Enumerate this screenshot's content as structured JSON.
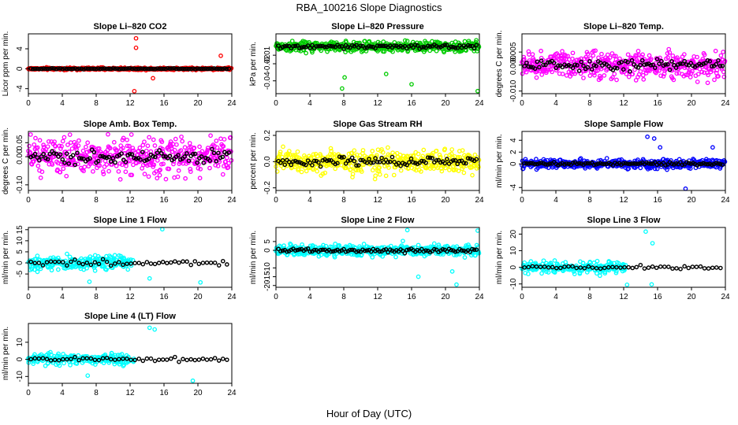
{
  "figure": {
    "title": "RBA_100216  Slope Diagnostics",
    "xlabel": "Hour of Day (UTC)"
  },
  "colors": {
    "red": "#ff0000",
    "green": "#00cc00",
    "magenta": "#ff00ff",
    "yellow": "#ffff00",
    "blue": "#0000ff",
    "cyan": "#00ffff",
    "black": "#000000"
  },
  "chart_data": [
    {
      "type": "scatter",
      "title": "Slope Li–820 CO2",
      "ylabel": "Licor ppm per min.",
      "xlim": [
        0,
        24
      ],
      "ylim": [
        -5,
        7
      ],
      "xticks": [
        "0",
        "4",
        "8",
        "12",
        "16",
        "20",
        "24"
      ],
      "yticks": [
        {
          "v": -4,
          "label": "-4"
        },
        {
          "v": 0,
          "label": "0"
        },
        {
          "v": 4,
          "label": "4"
        }
      ],
      "color": "red",
      "spread": 0.18,
      "density": "dense",
      "highlights": [
        {
          "x": 12.7,
          "y": 6.1
        },
        {
          "x": 12.7,
          "y": 4.2
        },
        {
          "x": 12.5,
          "y": -4.5
        },
        {
          "x": 14.7,
          "y": -1.9
        },
        {
          "x": 22.7,
          "y": 2.6
        }
      ]
    },
    {
      "type": "scatter",
      "title": "Slope Li–820 Pressure",
      "ylabel": "kPa per min.",
      "xlim": [
        0,
        24
      ],
      "ylim": [
        -0.055,
        0.015
      ],
      "xticks": [
        "0",
        "4",
        "8",
        "12",
        "16",
        "20",
        "24"
      ],
      "yticks": [
        {
          "v": -0.04,
          "label": "-0.04"
        },
        {
          "v": -0.02,
          "label": "-0.02"
        },
        {
          "v": -0.01,
          "label": "-0.01"
        }
      ],
      "color": "green",
      "spread": 0.005,
      "density": "dense",
      "highlights": [
        {
          "x": 7.8,
          "y": -0.049
        },
        {
          "x": 16.0,
          "y": -0.044
        },
        {
          "x": 23.8,
          "y": -0.052
        },
        {
          "x": 13.0,
          "y": -0.032
        },
        {
          "x": 8.1,
          "y": -0.036
        }
      ]
    },
    {
      "type": "scatter",
      "title": "Slope Li–820 Temp.",
      "ylabel": "degrees C per min.",
      "xlim": [
        0,
        24
      ],
      "ylim": [
        -0.011,
        0.012
      ],
      "xticks": [
        "0",
        "4",
        "8",
        "12",
        "16",
        "20",
        "24"
      ],
      "yticks": [
        {
          "v": -0.01,
          "label": "-0.010"
        },
        {
          "v": 0,
          "label": "0.000"
        },
        {
          "v": 0.005,
          "label": "0.005"
        }
      ],
      "color": "magenta",
      "spread": 0.004,
      "density": "dense",
      "highlights": []
    },
    {
      "type": "scatter",
      "title": "Slope Amb. Box Temp.",
      "ylabel": "degrees C per min.",
      "xlim": [
        0,
        24
      ],
      "ylim": [
        -0.12,
        0.09
      ],
      "xticks": [
        "0",
        "4",
        "8",
        "12",
        "16",
        "20",
        "24"
      ],
      "yticks": [
        {
          "v": -0.1,
          "label": "-0.10"
        },
        {
          "v": 0,
          "label": "0.00"
        },
        {
          "v": 0.05,
          "label": "0.05"
        }
      ],
      "color": "magenta",
      "spread": 0.05,
      "density": "dense",
      "highlights": []
    },
    {
      "type": "scatter",
      "title": "Slope Gas Stream RH",
      "ylabel": "percent per min.",
      "xlim": [
        0,
        24
      ],
      "ylim": [
        -0.22,
        0.23
      ],
      "xticks": [
        "0",
        "4",
        "8",
        "12",
        "16",
        "20",
        "24"
      ],
      "yticks": [
        {
          "v": -0.2,
          "label": "-0.2"
        },
        {
          "v": 0,
          "label": "0.0"
        },
        {
          "v": 0.2,
          "label": "0.2"
        }
      ],
      "color": "yellow",
      "spread": 0.07,
      "density": "dense",
      "highlights": []
    },
    {
      "type": "scatter",
      "title": "Slope Sample Flow",
      "ylabel": "ml/min per min.",
      "xlim": [
        0,
        24
      ],
      "ylim": [
        -4.5,
        5.5
      ],
      "xticks": [
        "0",
        "4",
        "8",
        "12",
        "16",
        "20",
        "24"
      ],
      "yticks": [
        {
          "v": -4,
          "label": "-4"
        },
        {
          "v": 0,
          "label": "0"
        },
        {
          "v": 2,
          "label": "2"
        },
        {
          "v": 4,
          "label": "4"
        }
      ],
      "color": "blue",
      "spread": 0.6,
      "density": "dense",
      "highlights": [
        {
          "x": 14.8,
          "y": 4.6
        },
        {
          "x": 15.6,
          "y": 4.3
        },
        {
          "x": 19.3,
          "y": -4.2
        },
        {
          "x": 22.5,
          "y": 2.8
        },
        {
          "x": 16.3,
          "y": 2.8
        }
      ]
    },
    {
      "type": "scatter",
      "title": "Slope Line 1 Flow",
      "ylabel": "ml/min per min.",
      "xlim": [
        0,
        24
      ],
      "ylim": [
        -11,
        16
      ],
      "xticks": [
        "0",
        "4",
        "8",
        "12",
        "16",
        "20",
        "24"
      ],
      "yticks": [
        {
          "v": -5,
          "label": "-5"
        },
        {
          "v": 0,
          "label": "0"
        },
        {
          "v": 5,
          "label": "5"
        },
        {
          "v": 10,
          "label": "10"
        },
        {
          "v": 15,
          "label": "15"
        }
      ],
      "color": "cyan",
      "spread": 2.2,
      "density": "sparse",
      "highlights": [
        {
          "x": 15.8,
          "y": 15.2
        },
        {
          "x": 7.2,
          "y": -8.5
        },
        {
          "x": 20.3,
          "y": -8.8
        },
        {
          "x": 14.3,
          "y": -7
        }
      ]
    },
    {
      "type": "scatter",
      "title": "Slope Line 2 Flow",
      "ylabel": "ml/min per min.",
      "xlim": [
        0,
        24
      ],
      "ylim": [
        -21,
        13
      ],
      "xticks": [
        "0",
        "4",
        "8",
        "12",
        "16",
        "20",
        "24"
      ],
      "yticks": [
        {
          "v": -20,
          "label": "-20"
        },
        {
          "v": -15,
          "label": "-15"
        },
        {
          "v": -10,
          "label": "-10"
        },
        {
          "v": 0,
          "label": "0"
        },
        {
          "v": 5,
          "label": "5"
        }
      ],
      "color": "cyan",
      "spread": 2.5,
      "density": "dense",
      "highlights": [
        {
          "x": 21.3,
          "y": -19.5
        },
        {
          "x": 15.5,
          "y": 11.5
        },
        {
          "x": 23.8,
          "y": 11.2
        },
        {
          "x": 16.8,
          "y": -15
        },
        {
          "x": 20.8,
          "y": -12
        }
      ]
    },
    {
      "type": "scatter",
      "title": "Slope Line 3 Flow",
      "ylabel": "ml/min per min.",
      "xlim": [
        0,
        24
      ],
      "ylim": [
        -12,
        24
      ],
      "xticks": [
        "0",
        "4",
        "8",
        "12",
        "16",
        "20",
        "24"
      ],
      "yticks": [
        {
          "v": -10,
          "label": "-10"
        },
        {
          "v": 0,
          "label": "0"
        },
        {
          "v": 10,
          "label": "10"
        },
        {
          "v": 20,
          "label": "20"
        }
      ],
      "color": "cyan",
      "spread": 2.2,
      "density": "sparse",
      "highlights": [
        {
          "x": 14.6,
          "y": 21.5
        },
        {
          "x": 12.4,
          "y": -10.5
        },
        {
          "x": 15.3,
          "y": -10.3
        },
        {
          "x": 15.4,
          "y": 14.5
        }
      ]
    },
    {
      "type": "scatter",
      "title": "Slope Line 4 (LT) Flow",
      "ylabel": "ml/min per min.",
      "xlim": [
        0,
        24
      ],
      "ylim": [
        -14,
        21
      ],
      "xticks": [
        "0",
        "4",
        "8",
        "12",
        "16",
        "20",
        "24"
      ],
      "yticks": [
        {
          "v": -10,
          "label": "-10"
        },
        {
          "v": 0,
          "label": "0"
        },
        {
          "v": 10,
          "label": "10"
        }
      ],
      "color": "cyan",
      "spread": 2.0,
      "density": "sparse",
      "highlights": [
        {
          "x": 14.3,
          "y": 18.5
        },
        {
          "x": 14.9,
          "y": 17.5
        },
        {
          "x": 19.4,
          "y": -12.5
        },
        {
          "x": 7.0,
          "y": -9.5
        }
      ]
    }
  ]
}
